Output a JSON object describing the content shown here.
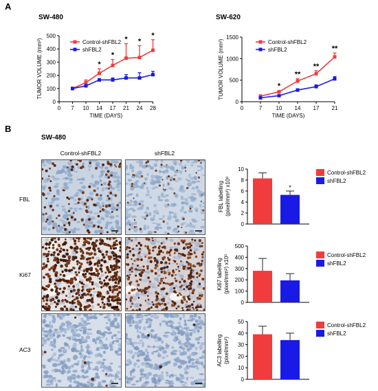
{
  "panel_a": {
    "letter": "A"
  },
  "panel_b": {
    "letter": "B",
    "title": "SW-480",
    "columns": [
      "Control-shFBL2",
      "shFBL2"
    ],
    "rows": [
      "FBL",
      "Ki67",
      "AC3"
    ]
  },
  "colors": {
    "control": "#f03c3c",
    "shfbl2": "#1a1ae6"
  },
  "chart_data": [
    {
      "type": "line",
      "title": "SW-480",
      "xlabel": "TIME (DAYS)",
      "ylabel": "TUMOR VOLUME (mm³)",
      "x": [
        7,
        10,
        14,
        17,
        21,
        24,
        28
      ],
      "xticks": [
        "0",
        "7",
        "10",
        "14",
        "17",
        "21",
        "24",
        "28"
      ],
      "ylim": [
        0,
        500
      ],
      "yticks": [
        "0",
        "100",
        "200",
        "300",
        "400",
        "500"
      ],
      "legend": "top-left",
      "series": [
        {
          "name": "Control-shFBL2",
          "values": [
            100,
            145,
            215,
            275,
            330,
            335,
            390
          ],
          "err": [
            10,
            20,
            35,
            45,
            110,
            90,
            80
          ]
        },
        {
          "name": "shFBL2",
          "values": [
            100,
            120,
            165,
            165,
            180,
            180,
            205
          ],
          "err": [
            8,
            10,
            10,
            15,
            25,
            40,
            25
          ]
        }
      ],
      "annotations": [
        {
          "x": 14,
          "text": "*"
        },
        {
          "x": 17,
          "text": "*"
        },
        {
          "x": 21,
          "text": "*"
        },
        {
          "x": 24,
          "text": "*"
        },
        {
          "x": 28,
          "text": "*"
        }
      ]
    },
    {
      "type": "line",
      "title": "SW-620",
      "xlabel": "TIME (DAYS)",
      "ylabel": "TUMOR VOLUME (mm³)",
      "x": [
        7,
        10,
        14,
        17,
        21
      ],
      "xticks": [
        "0",
        "7",
        "10",
        "14",
        "17",
        "21"
      ],
      "ylim": [
        0,
        1500
      ],
      "yticks": [
        "0",
        "500",
        "1000",
        "1500"
      ],
      "legend": "top-left",
      "series": [
        {
          "name": "Control-shFBL2",
          "values": [
            130,
            230,
            480,
            650,
            1040
          ],
          "err": [
            15,
            30,
            55,
            70,
            90
          ]
        },
        {
          "name": "shFBL2",
          "values": [
            90,
            140,
            270,
            350,
            530
          ],
          "err": [
            10,
            15,
            30,
            40,
            50
          ]
        }
      ],
      "annotations": [
        {
          "x": 10,
          "text": "*"
        },
        {
          "x": 14,
          "text": "**"
        },
        {
          "x": 17,
          "text": "**"
        },
        {
          "x": 21,
          "text": "**"
        }
      ]
    },
    {
      "type": "bar",
      "ylabel": "FBL labelling (pixel/mm²) x10³",
      "categories": [
        "Control-shFBL2",
        "shFBL2"
      ],
      "values": [
        8.3,
        5.3
      ],
      "err": [
        1.0,
        0.7
      ],
      "ylim": [
        0,
        10
      ],
      "yticks": [
        "0",
        "2",
        "4",
        "6",
        "8",
        "10"
      ],
      "legend": "right",
      "annotations": [
        {
          "category": "shFBL2",
          "text": "*"
        }
      ]
    },
    {
      "type": "bar",
      "ylabel": "Ki67 labelling (pixel/mm²) x10³",
      "categories": [
        "Control-shFBL2",
        "shFBL2"
      ],
      "values": [
        280,
        195
      ],
      "err": [
        110,
        60
      ],
      "ylim": [
        0,
        500
      ],
      "yticks": [
        "0",
        "100",
        "200",
        "300",
        "400",
        "500"
      ],
      "legend": "right"
    },
    {
      "type": "bar",
      "ylabel": "AC3 labelling (pixel/mm²)",
      "categories": [
        "Control-shFBL2",
        "shFBL2"
      ],
      "values": [
        39,
        34
      ],
      "err": [
        7,
        6
      ],
      "ylim": [
        0,
        50
      ],
      "yticks": [
        "0",
        "10",
        "20",
        "30",
        "40",
        "50"
      ],
      "legend": "right"
    }
  ]
}
